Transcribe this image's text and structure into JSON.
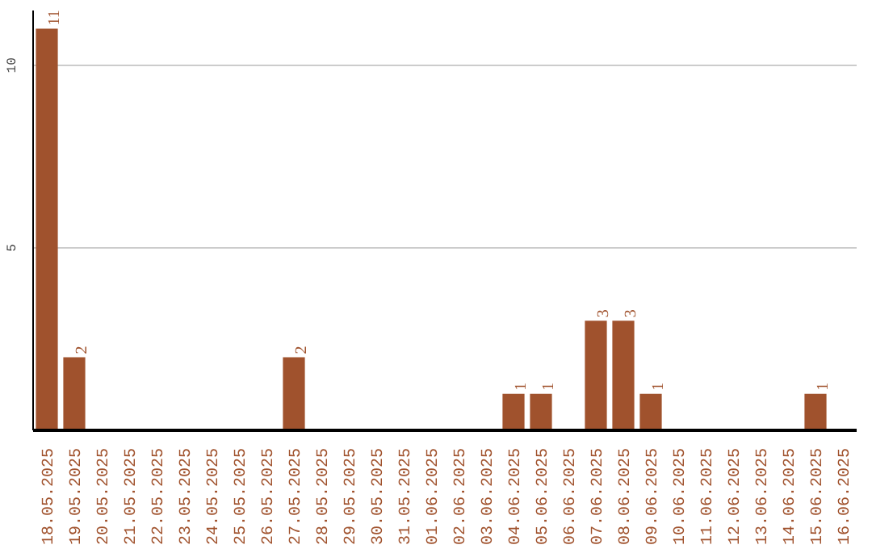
{
  "chart_data": {
    "type": "bar",
    "categories": [
      "18.05.2025",
      "19.05.2025",
      "20.05.2025",
      "21.05.2025",
      "22.05.2025",
      "23.05.2025",
      "24.05.2025",
      "25.05.2025",
      "26.05.2025",
      "27.05.2025",
      "28.05.2025",
      "29.05.2025",
      "30.05.2025",
      "31.05.2025",
      "01.06.2025",
      "02.06.2025",
      "03.06.2025",
      "04.06.2025",
      "05.06.2025",
      "06.06.2025",
      "07.06.2025",
      "08.06.2025",
      "09.06.2025",
      "10.06.2025",
      "11.06.2025",
      "12.06.2025",
      "13.06.2025",
      "14.06.2025",
      "15.06.2025",
      "16.06.2025"
    ],
    "values": [
      11,
      2,
      0,
      0,
      0,
      0,
      0,
      0,
      0,
      2,
      0,
      0,
      0,
      0,
      0,
      0,
      0,
      1,
      1,
      0,
      3,
      3,
      1,
      0,
      0,
      0,
      0,
      0,
      1,
      0
    ],
    "value_labels": [
      "11",
      "2",
      null,
      null,
      null,
      null,
      null,
      null,
      null,
      "2",
      null,
      null,
      null,
      null,
      null,
      null,
      null,
      "1",
      "1",
      null,
      "3",
      "3",
      "1",
      null,
      null,
      null,
      null,
      null,
      "1",
      null
    ],
    "color": "#a0522d",
    "ylim": [
      0,
      11.5
    ],
    "yticks": [
      5,
      10
    ],
    "grid": "y"
  }
}
